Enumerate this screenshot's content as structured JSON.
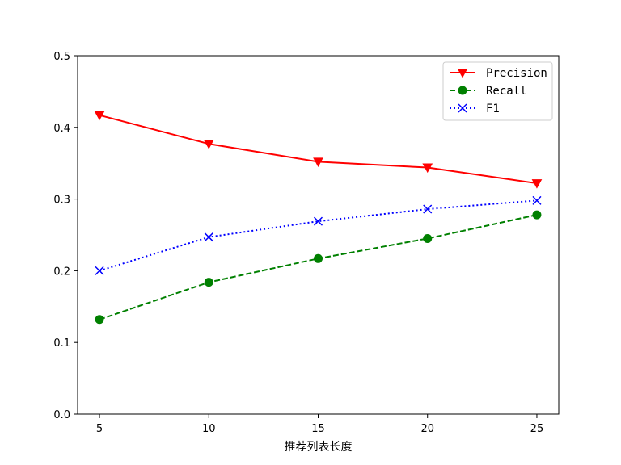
{
  "chart_data": {
    "type": "line",
    "title": "",
    "xlabel": "推荐列表长度",
    "ylabel": "",
    "x": [
      5,
      10,
      15,
      20,
      25
    ],
    "xticks": [
      5,
      10,
      15,
      20,
      25
    ],
    "xtick_labels": [
      "5",
      "10",
      "15",
      "20",
      "25"
    ],
    "xlim": [
      4,
      26
    ],
    "ylim": [
      0,
      0.5
    ],
    "yticks": [
      0,
      0.1,
      0.2,
      0.3,
      0.4,
      0.5
    ],
    "ytick_labels": [
      "0.0",
      "0.1",
      "0.2",
      "0.3",
      "0.4",
      "0.5"
    ],
    "grid": false,
    "legend_position": "top-right",
    "series": [
      {
        "name": "Precision",
        "values": [
          0.417,
          0.377,
          0.352,
          0.344,
          0.322
        ],
        "color": "#ff0000",
        "line_style": "solid",
        "marker": "triangle-down"
      },
      {
        "name": "Recall",
        "values": [
          0.132,
          0.184,
          0.217,
          0.245,
          0.278
        ],
        "color": "#008000",
        "line_style": "dashed",
        "marker": "circle"
      },
      {
        "name": "F1",
        "values": [
          0.2,
          0.247,
          0.269,
          0.286,
          0.298
        ],
        "color": "#0000ff",
        "line_style": "dotted",
        "marker": "x"
      }
    ]
  }
}
